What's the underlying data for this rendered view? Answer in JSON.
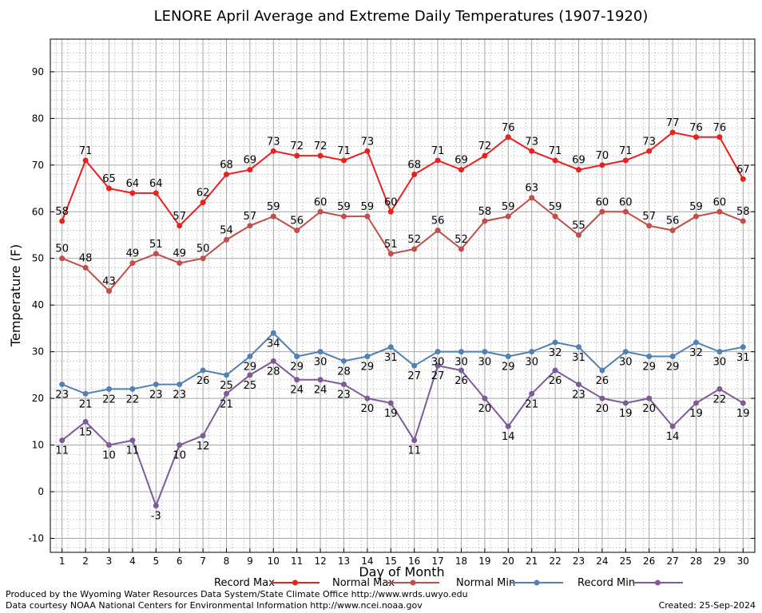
{
  "chart_data": {
    "type": "line",
    "title": "LENORE April Average and Extreme Daily Temperatures (1907-1920)",
    "xlabel": "Day of Month",
    "ylabel": "Temperature (F)",
    "ylim": [
      -13,
      97
    ],
    "xlim": [
      0.5,
      30.5
    ],
    "grid": true,
    "legend_placement": "bottom",
    "x": [
      1,
      2,
      3,
      4,
      5,
      6,
      7,
      8,
      9,
      10,
      11,
      12,
      13,
      14,
      15,
      16,
      17,
      18,
      19,
      20,
      21,
      22,
      23,
      24,
      25,
      26,
      27,
      28,
      29,
      30
    ],
    "x_tick_labels": [
      "1",
      "2",
      "3",
      "4",
      "5",
      "6",
      "7",
      "8",
      "9",
      "10",
      "11",
      "12",
      "13",
      "14",
      "15",
      "16",
      "17",
      "18",
      "19",
      "20",
      "21",
      "22",
      "23",
      "24",
      "25",
      "26",
      "27",
      "28",
      "29",
      "30"
    ],
    "y_ticks": [
      -10,
      0,
      10,
      20,
      30,
      40,
      50,
      60,
      70,
      80,
      90
    ],
    "y_tick_labels": [
      "-10",
      "0",
      "10",
      "20",
      "30",
      "40",
      "50",
      "60",
      "70",
      "80",
      "90"
    ],
    "series": [
      {
        "name": "Record Max",
        "color": "#e8201e",
        "values": [
          58,
          71,
          65,
          64,
          64,
          57,
          62,
          68,
          69,
          73,
          72,
          72,
          71,
          73,
          60,
          68,
          71,
          69,
          72,
          76,
          73,
          71,
          69,
          70,
          71,
          73,
          77,
          76,
          76,
          67
        ],
        "labels": [
          "58",
          "71",
          "65",
          "64",
          "64",
          "57",
          "62",
          "68",
          "69",
          "73",
          "72",
          "72",
          "71",
          "73",
          "60",
          "68",
          "71",
          "69",
          "72",
          "76",
          "73",
          "71",
          "69",
          "70",
          "71",
          "73",
          "77",
          "76",
          "76",
          "67"
        ],
        "label_pos": "above"
      },
      {
        "name": "Normal Max",
        "color": "#c04e4a",
        "values": [
          50,
          48,
          43,
          49,
          51,
          49,
          50,
          54,
          57,
          59,
          56,
          60,
          59,
          59,
          51,
          52,
          56,
          52,
          58,
          59,
          63,
          59,
          55,
          60,
          60,
          57,
          56,
          59,
          60,
          58
        ],
        "labels": [
          "50",
          "48",
          "43",
          "49",
          "51",
          "49",
          "50",
          "54",
          "57",
          "59",
          "56",
          "60",
          "59",
          "59",
          "51",
          "52",
          "56",
          "52",
          "58",
          "59",
          "63",
          "59",
          "55",
          "60",
          "60",
          "57",
          "56",
          "59",
          "60",
          "58"
        ],
        "label_pos": "above"
      },
      {
        "name": "Normal Min",
        "color": "#4f81b4",
        "values": [
          23,
          21,
          22,
          22,
          23,
          23,
          26,
          25,
          29,
          34,
          29,
          30,
          28,
          29,
          31,
          27,
          30,
          30,
          30,
          29,
          30,
          32,
          31,
          26,
          30,
          29,
          29,
          32,
          30,
          31
        ],
        "labels": [
          "23",
          "21",
          "22",
          "22",
          "23",
          "23",
          "26",
          "25",
          "29",
          "34",
          "29",
          "30",
          "28",
          "29",
          "31",
          "27",
          "30",
          "30",
          "30",
          "29",
          "30",
          "32",
          "31",
          "26",
          "30",
          "29",
          "29",
          "32",
          "30",
          "31"
        ],
        "label_pos": "below"
      },
      {
        "name": "Record Min",
        "color": "#7f5a98",
        "values": [
          11,
          15,
          10,
          11,
          -3,
          10,
          12,
          21,
          25,
          28,
          24,
          24,
          23,
          20,
          19,
          11,
          27,
          26,
          20,
          14,
          21,
          26,
          23,
          20,
          19,
          20,
          14,
          19,
          22,
          19
        ],
        "labels": [
          "11",
          "15",
          "10",
          "11",
          "-3",
          "10",
          "12",
          "21",
          "25",
          "28",
          "24",
          "24",
          "23",
          "20",
          "19",
          "11",
          "27",
          "26",
          "20",
          "14",
          "21",
          "26",
          "23",
          "20",
          "19",
          "20",
          "14",
          "19",
          "22",
          "19"
        ],
        "label_pos": "below"
      }
    ]
  },
  "footer": {
    "produced_by": "Produced by the Wyoming Water Resources Data System/State Climate Office http://www.wrds.uwyo.edu",
    "courtesy": "Data courtesy NOAA National Centers for Environmental Information http://www.ncei.noaa.gov",
    "created": "Created: 25-Sep-2024"
  }
}
